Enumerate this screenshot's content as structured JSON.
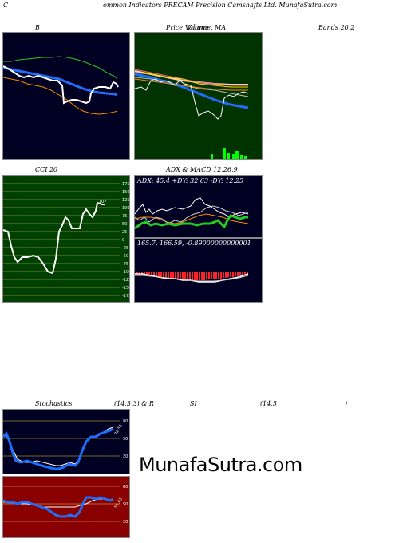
{
  "header": {
    "left_char": "C",
    "title": "ommon Indicators PRECAM Precision Camshafts Ltd. MunafaSutra.com"
  },
  "titles": {
    "bollinger": "B",
    "price_volume": "Price, Volume, MA",
    "price_volume_overlap": "Volume",
    "bands": "Bands 20,2",
    "cci": "CCI 20",
    "adx_macd": "ADX  & MACD 12,26,9",
    "stoch_rsi_a": "Stochastics",
    "stoch_rsi_b": "(14,3,3) & R",
    "stoch_rsi_c": "SI",
    "stoch_rsi_d": "(14,5",
    "stoch_rsi_e": ")"
  },
  "cci": {
    "ticks": [
      "175",
      "150",
      "125",
      "100",
      "75",
      "50",
      "25",
      "0",
      "-25",
      "-50",
      "-75",
      "-100",
      "-125",
      "-150",
      "-175"
    ],
    "current_value": "107"
  },
  "adx": {
    "text": "ADX: 45.4   +DY: 32.63  -DY: 12.25"
  },
  "macd": {
    "text": "165.7,  166.59,  -0.89000000000001"
  },
  "stoch": {
    "ticks": [
      "80",
      "50",
      "20"
    ],
    "current_value": "72.53"
  },
  "rsi": {
    "ticks": [
      "80",
      "50",
      "20"
    ],
    "current_value": "51.43"
  },
  "watermark": "MunafaSutra.com",
  "colors": {
    "panel_dark": "#000022",
    "panel_green": "#003300",
    "panel_cci_green": "#004000",
    "panel_rsi_red": "#880000",
    "blue": "#1f6fff",
    "orange": "#ff8800",
    "green_line": "#22cc22"
  }
}
